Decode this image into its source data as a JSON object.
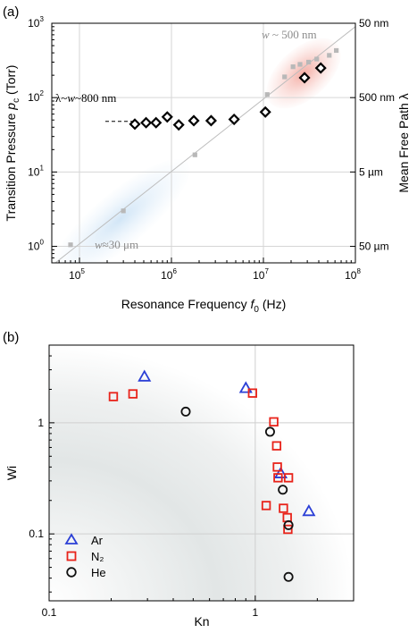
{
  "chart_data": [
    {
      "panel": "(a)",
      "type": "scatter",
      "xlabel_main": "Resonance Frequency ",
      "xlabel_symbol": "f",
      "xlabel_sub": "0",
      "xlabel_unit": " (Hz)",
      "ylabel_main": "Transition Pressure ",
      "ylabel_symbol": "p",
      "ylabel_sub": "c",
      "ylabel_unit": " (Torr)",
      "y2label": "Mean Free Path λ",
      "x_scale": "log",
      "y_scale": "log",
      "xlim": [
        50000,
        100000000
      ],
      "ylim": [
        0.6,
        1000
      ],
      "x_ticks": [
        {
          "value": 100000,
          "base": "10",
          "exp": "5"
        },
        {
          "value": 1000000,
          "base": "10",
          "exp": "6"
        },
        {
          "value": 10000000,
          "base": "10",
          "exp": "7"
        },
        {
          "value": 100000000,
          "base": "10",
          "exp": "8"
        }
      ],
      "y_ticks": [
        {
          "value": 1,
          "base": "10",
          "exp": "0"
        },
        {
          "value": 10,
          "base": "10",
          "exp": "1"
        },
        {
          "value": 100,
          "base": "10",
          "exp": "2"
        },
        {
          "value": 1000,
          "base": "10",
          "exp": "3"
        }
      ],
      "y2_ticks": [
        {
          "value": 1000,
          "label": "50 nm"
        },
        {
          "value": 100,
          "label": "500 nm"
        },
        {
          "value": 10,
          "label": "5 µm"
        },
        {
          "value": 1,
          "label": "50 µm"
        }
      ],
      "grid": true,
      "series": [
        {
          "marker": "diamond",
          "color": "#000000",
          "x": [
            400000,
            530000,
            680000,
            900000,
            1200000,
            1750000,
            2700000,
            4800000,
            10500000,
            28000000,
            42000000
          ],
          "y": [
            44,
            46,
            46,
            55,
            43,
            49,
            49,
            51,
            64,
            185,
            250
          ]
        },
        {
          "marker": "square",
          "color": "#b8b8b8",
          "x": [
            80000,
            300000,
            1800000,
            11000000,
            17000000,
            21000000,
            25000000,
            31000000,
            38000000,
            52000000,
            62000000
          ],
          "y": [
            1.05,
            3,
            17,
            110,
            190,
            260,
            280,
            300,
            330,
            370,
            430
          ]
        }
      ],
      "annotations": [
        {
          "italic": "w",
          "text": " ~ 500 nm"
        },
        {
          "prefix": "λ~",
          "italic": "w",
          "text": "~800 nm"
        },
        {
          "italic": "w",
          "text": "≈30 μm"
        }
      ]
    },
    {
      "panel": "(b)",
      "type": "scatter",
      "xlabel": "Kn",
      "ylabel": "Wi",
      "x_scale": "log",
      "y_scale": "log",
      "xlim": [
        0.1,
        3
      ],
      "ylim": [
        0.025,
        5
      ],
      "x_ticks": [
        {
          "value": 0.1,
          "label": "0.1"
        },
        {
          "value": 1,
          "label": "1"
        }
      ],
      "y_ticks": [
        {
          "value": 0.1,
          "label": "0.1"
        },
        {
          "value": 1,
          "label": "1"
        }
      ],
      "grid": true,
      "legend_position": "bottom-left",
      "series": [
        {
          "name": "Ar",
          "marker": "triangle",
          "color": "#2b3fd6",
          "x": [
            0.29,
            0.9,
            1.33,
            1.82
          ],
          "y": [
            2.6,
            2.05,
            0.35,
            0.16
          ]
        },
        {
          "name": "N₂",
          "marker": "square",
          "color": "#e8231a",
          "x": [
            0.205,
            0.255,
            0.97,
            1.13,
            1.23,
            1.27,
            1.28,
            1.29,
            1.37,
            1.43,
            1.44,
            1.45
          ],
          "y": [
            1.72,
            1.82,
            1.85,
            0.18,
            1.02,
            0.62,
            0.4,
            0.32,
            0.17,
            0.14,
            0.11,
            0.32
          ]
        },
        {
          "name": "He",
          "marker": "circle",
          "color": "#111111",
          "x": [
            0.46,
            1.18,
            1.36,
            1.45,
            1.45
          ],
          "y": [
            1.26,
            0.83,
            0.25,
            0.12,
            0.041
          ]
        }
      ]
    }
  ]
}
